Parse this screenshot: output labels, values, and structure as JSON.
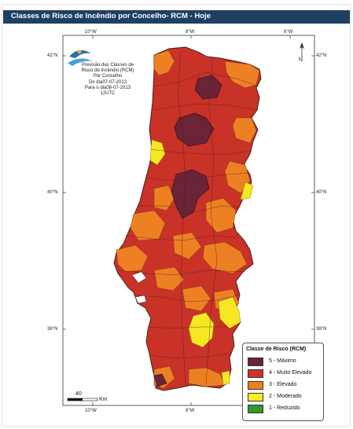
{
  "header": {
    "title": "Classes de Risco de Incêndio por Concelho- RCM - Hoje"
  },
  "map": {
    "top_ticks": [
      "10°W",
      "8°W",
      "6°W"
    ],
    "bottom_ticks": [
      "10°W",
      "8°W"
    ],
    "left_ticks": [
      "42°N",
      "40°N",
      "38°N"
    ],
    "right_ticks": [
      "42°N",
      "40°N",
      "38°N"
    ],
    "north_label": "N",
    "info_lines": [
      "Previsão das Classes de",
      "Risco de Incêndio (RCM)",
      "Por Concelho",
      "Do dia07-07-2013",
      "Para o dia08-07-2013",
      "12UTC"
    ],
    "scale_value": "40",
    "scale_unit": "Km"
  },
  "legend": {
    "title": "Classe de Risco (RCM)",
    "items": [
      {
        "label": "5 - Máximo",
        "color": "#6b2236"
      },
      {
        "label": "4 - Muito Elevado",
        "color": "#d4302a"
      },
      {
        "label": "3 - Elevado",
        "color": "#ef7f1d"
      },
      {
        "label": "2 - Moderado",
        "color": "#f7ed22"
      },
      {
        "label": "1 - Reduzido",
        "color": "#2e9a2c"
      }
    ]
  }
}
